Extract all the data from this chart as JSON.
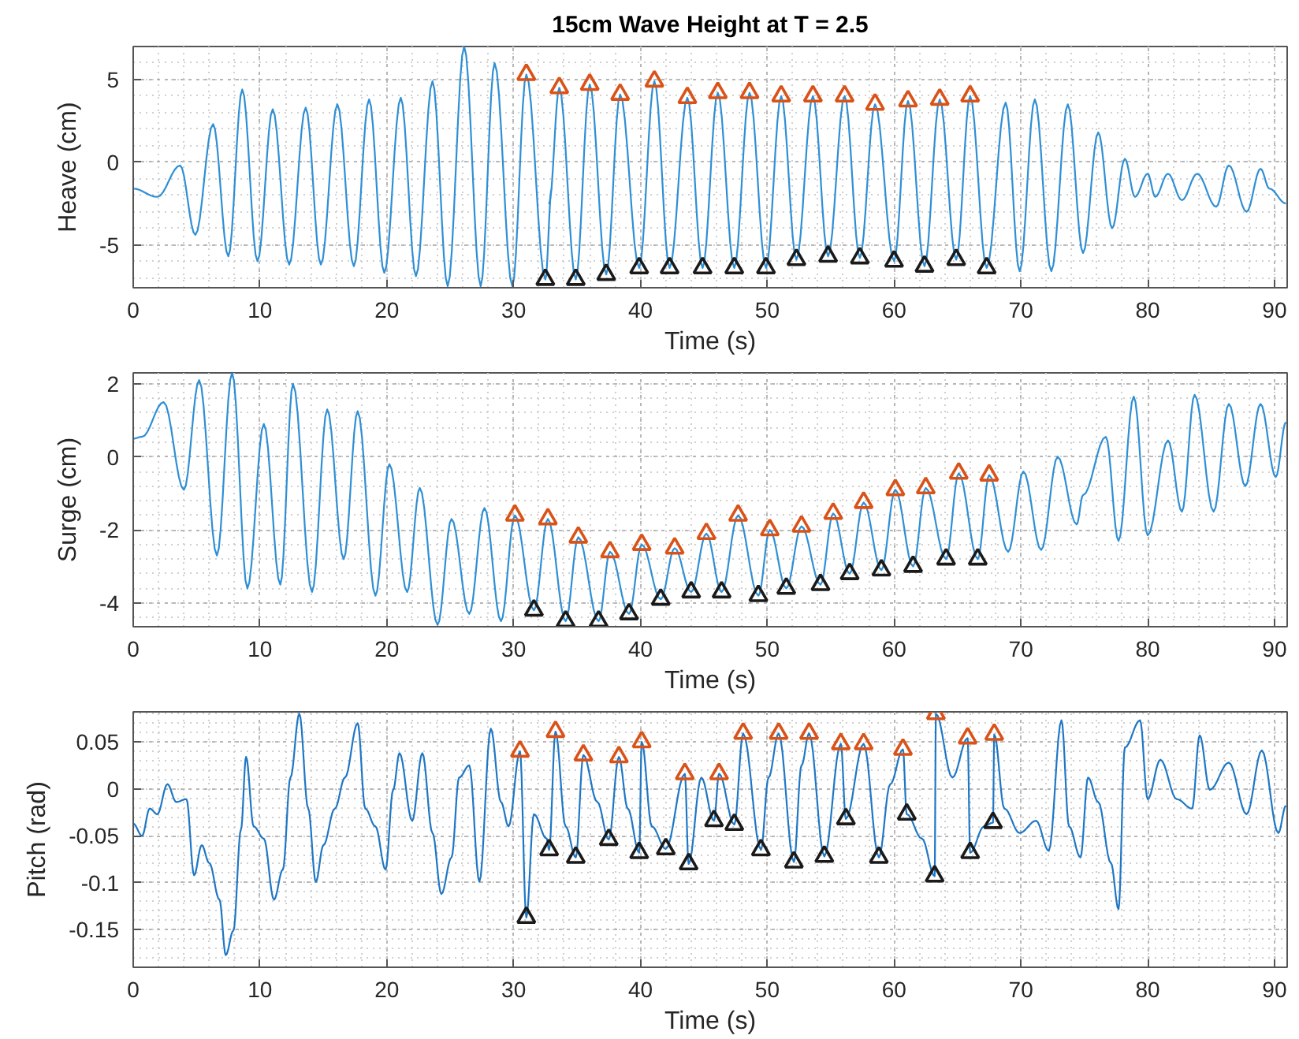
{
  "chart_data": [
    {
      "type": "line",
      "title": "15cm Wave Height at T = 2.5",
      "xlabel": "Time (s)",
      "ylabel": "Heave (cm)",
      "xlim": [
        0,
        91
      ],
      "xticks": [
        0,
        10,
        20,
        30,
        40,
        50,
        60,
        70,
        80,
        90
      ],
      "ylim": [
        -7.6,
        7
      ],
      "yticks": [
        -5,
        0,
        5
      ],
      "grid": true,
      "series": [
        {
          "color": "#2f8fd4",
          "x": [
            0,
            1.9,
            3.7,
            4.9,
            6.3,
            7.5,
            8.6,
            9.8,
            11.0,
            12.3,
            13.6,
            14.8,
            16.1,
            17.4,
            18.6,
            19.8,
            21.1,
            22.3,
            23.6,
            24.8,
            26.1,
            27.4,
            28.5,
            29.9,
            31.0,
            32.5,
            33.0,
            32.8,
            33.6,
            34.9,
            36.0,
            37.3,
            38.4,
            39.9,
            41.1,
            42.3,
            43.7,
            44.9,
            46.1,
            47.4,
            48.6,
            49.9,
            51.1,
            52.3,
            53.6,
            54.8,
            56.1,
            57.3,
            58.5,
            60.0,
            61.1,
            62.4,
            63.6,
            64.9,
            66.0,
            67.3,
            68.8,
            69.9,
            71.1,
            72.4,
            73.7,
            74.9,
            76.1,
            77.2,
            78.2,
            79.0,
            80.0,
            80.6,
            81.6,
            82.7,
            83.9,
            85.4,
            86.4,
            87.8,
            88.9,
            89.6,
            90.9
          ],
          "values": [
            -1.6,
            -2.1,
            -0.2,
            -4.4,
            2.3,
            -5.7,
            4.4,
            -6.0,
            3.2,
            -6.2,
            3.3,
            -6.2,
            3.5,
            -6.3,
            3.8,
            -6.7,
            3.9,
            -6.9,
            4.9,
            -7.5,
            7.0,
            -7.5,
            6.0,
            -7.5,
            5.3,
            -7.1,
            -1.6,
            -2.5,
            4.5,
            -7.1,
            4.7,
            -6.8,
            4.1,
            -6.4,
            4.9,
            -6.4,
            3.9,
            -6.4,
            4.2,
            -6.4,
            4.2,
            -6.4,
            4.0,
            -5.9,
            4.0,
            -5.7,
            4.0,
            -5.8,
            3.5,
            -6.0,
            3.7,
            -6.3,
            3.8,
            -5.9,
            4.0,
            -6.4,
            3.6,
            -6.6,
            3.8,
            -6.6,
            3.5,
            -5.5,
            1.8,
            -4.0,
            0.2,
            -2.1,
            -0.7,
            -2.1,
            -0.7,
            -2.3,
            -0.7,
            -2.7,
            -0.2,
            -3.0,
            -0.4,
            -1.6,
            -2.5
          ]
        },
        {
          "type": "scatter",
          "marker": "triangle",
          "color": "#d95319",
          "x": [
            31.0,
            33.6,
            36.0,
            38.4,
            41.1,
            43.7,
            46.1,
            48.6,
            51.1,
            53.6,
            56.1,
            58.5,
            61.1,
            63.6,
            66.0
          ],
          "values": [
            5.3,
            4.5,
            4.7,
            4.1,
            4.9,
            3.9,
            4.2,
            4.2,
            4.0,
            4.0,
            4.0,
            3.5,
            3.7,
            3.8,
            4.0
          ]
        },
        {
          "type": "scatter",
          "marker": "triangle",
          "color": "#1a1a1a",
          "x": [
            32.5,
            34.9,
            37.3,
            39.9,
            42.3,
            44.9,
            47.4,
            49.9,
            52.3,
            54.8,
            57.3,
            60.0,
            62.4,
            64.9,
            67.3
          ],
          "values": [
            -7.1,
            -7.1,
            -6.8,
            -6.4,
            -6.4,
            -6.4,
            -6.4,
            -6.4,
            -5.9,
            -5.7,
            -5.8,
            -6.0,
            -6.3,
            -5.9,
            -6.4
          ]
        }
      ]
    },
    {
      "type": "line",
      "xlabel": "Time (s)",
      "ylabel": "Surge (cm)",
      "xlim": [
        0,
        91
      ],
      "xticks": [
        0,
        10,
        20,
        30,
        40,
        50,
        60,
        70,
        80,
        90
      ],
      "ylim": [
        -4.65,
        2.3
      ],
      "yticks": [
        -4,
        -2,
        0,
        2
      ],
      "grid": true,
      "series": [
        {
          "color": "#2f8fd4",
          "x": [
            0,
            0.7,
            2.4,
            4.0,
            5.2,
            6.6,
            7.8,
            9.0,
            10.3,
            11.6,
            12.6,
            14.1,
            15.3,
            16.6,
            17.7,
            19.1,
            20.2,
            21.6,
            22.6,
            24.0,
            25.1,
            26.5,
            27.7,
            29.0,
            30.1,
            31.6,
            32.7,
            34.1,
            35.1,
            36.7,
            37.6,
            39.1,
            40.1,
            41.6,
            42.7,
            44.0,
            45.2,
            46.4,
            47.7,
            49.3,
            50.2,
            51.5,
            52.7,
            54.2,
            55.2,
            56.5,
            57.6,
            59.0,
            60.1,
            61.5,
            62.5,
            64.1,
            65.1,
            66.6,
            67.5,
            69.0,
            70.2,
            71.6,
            72.9,
            74.4,
            74.9,
            76.7,
            77.7,
            78.9,
            80.0,
            81.6,
            82.7,
            83.7,
            85.2,
            86.4,
            87.7,
            88.9,
            90.1,
            90.9
          ],
          "values": [
            0.5,
            0.55,
            1.5,
            -0.9,
            2.1,
            -2.7,
            2.3,
            -3.6,
            0.9,
            -3.5,
            2.0,
            -3.7,
            1.3,
            -2.8,
            1.25,
            -3.8,
            -0.2,
            -3.7,
            -0.85,
            -4.6,
            -1.7,
            -4.3,
            -1.4,
            -4.5,
            -1.6,
            -4.2,
            -1.7,
            -4.5,
            -2.2,
            -4.5,
            -2.6,
            -4.3,
            -2.4,
            -3.9,
            -2.5,
            -3.7,
            -2.1,
            -3.7,
            -1.6,
            -3.8,
            -2.0,
            -3.6,
            -1.9,
            -3.5,
            -1.55,
            -3.2,
            -1.25,
            -3.1,
            -0.9,
            -3.0,
            -0.85,
            -2.8,
            -0.45,
            -2.8,
            -0.5,
            -2.6,
            -0.4,
            -2.55,
            0.0,
            -1.85,
            -1.05,
            0.55,
            -2.3,
            1.65,
            -2.15,
            0.45,
            -1.5,
            1.7,
            -1.5,
            1.45,
            -0.8,
            1.45,
            -0.55,
            0.95
          ]
        },
        {
          "type": "scatter",
          "marker": "triangle",
          "color": "#d95319",
          "x": [
            30.1,
            32.7,
            35.1,
            37.6,
            40.1,
            42.7,
            45.2,
            47.7,
            50.2,
            52.7,
            55.2,
            57.6,
            60.1,
            62.5,
            65.1,
            67.5
          ],
          "values": [
            -1.6,
            -1.7,
            -2.2,
            -2.6,
            -2.4,
            -2.5,
            -2.1,
            -1.6,
            -2.0,
            -1.9,
            -1.55,
            -1.25,
            -0.9,
            -0.85,
            -0.45,
            -0.5
          ]
        },
        {
          "type": "scatter",
          "marker": "triangle",
          "color": "#1a1a1a",
          "x": [
            31.6,
            34.1,
            36.7,
            39.1,
            41.6,
            44.0,
            46.4,
            49.3,
            51.5,
            54.2,
            56.5,
            59.0,
            61.5,
            64.1,
            66.6
          ],
          "values": [
            -4.2,
            -4.5,
            -4.5,
            -4.3,
            -3.9,
            -3.7,
            -3.7,
            -3.8,
            -3.6,
            -3.5,
            -3.2,
            -3.1,
            -3.0,
            -2.8,
            -2.8
          ]
        }
      ]
    },
    {
      "type": "line",
      "xlabel": "Time (s)",
      "ylabel": "Pitch (rad)",
      "xlim": [
        0,
        91
      ],
      "xticks": [
        0,
        10,
        20,
        30,
        40,
        50,
        60,
        70,
        80,
        90
      ],
      "ylim": [
        -0.19,
        0.082
      ],
      "yticks": [
        -0.15,
        -0.1,
        -0.05,
        0,
        0.05
      ],
      "grid": true,
      "series": [
        {
          "color": "#1f77c4",
          "x": [
            0,
            0.7,
            1.3,
            1.9,
            2.7,
            3.4,
            4.2,
            4.8,
            5.4,
            6.0,
            6.8,
            7.3,
            7.9,
            8.5,
            8.9,
            9.5,
            10.3,
            11.1,
            11.8,
            12.4,
            13.1,
            13.8,
            14.4,
            15.0,
            15.9,
            16.7,
            17.7,
            18.3,
            19.1,
            19.9,
            20.5,
            21.0,
            22.0,
            22.8,
            23.6,
            24.3,
            25.1,
            25.7,
            26.5,
            27.3,
            28.2,
            29.0,
            29.6,
            30.5,
            31.0,
            31.6,
            32.6,
            32.8,
            33.3,
            34.1,
            34.9,
            35.5,
            36.6,
            37.5,
            38.3,
            39.0,
            39.9,
            40.1,
            40.9,
            42.0,
            43.5,
            43.8,
            44.8,
            45.8,
            46.2,
            47.4,
            48.1,
            49.5,
            50.1,
            50.9,
            52.1,
            52.7,
            53.3,
            54.5,
            55.8,
            56.2,
            57.6,
            58.8,
            59.7,
            60.7,
            61.0,
            62.2,
            63.2,
            63.3,
            64.6,
            65.8,
            66.0,
            67.1,
            67.8,
            67.9,
            68.7,
            69.9,
            71.2,
            72.2,
            73.2,
            73.8,
            74.7,
            75.3,
            76.1,
            77.1,
            77.7,
            78.2,
            79.4,
            80.0,
            81.0,
            82.3,
            83.5,
            84.1,
            84.9,
            86.4,
            87.8,
            89.0,
            90.3,
            90.9
          ],
          "values": [
            -0.037,
            -0.05,
            -0.021,
            -0.027,
            0.005,
            -0.014,
            -0.011,
            -0.092,
            -0.06,
            -0.079,
            -0.118,
            -0.177,
            -0.151,
            -0.043,
            0.034,
            -0.04,
            -0.053,
            -0.118,
            -0.086,
            0.012,
            0.08,
            -0.021,
            -0.099,
            -0.06,
            -0.021,
            0.012,
            0.07,
            -0.021,
            -0.04,
            -0.086,
            -0.001,
            0.038,
            -0.034,
            0.038,
            -0.047,
            -0.112,
            -0.073,
            0.012,
            0.025,
            -0.099,
            0.064,
            -0.014,
            -0.04,
            0.04,
            -0.137,
            -0.027,
            -0.053,
            -0.065,
            0.061,
            -0.04,
            -0.073,
            0.036,
            -0.014,
            -0.054,
            0.034,
            -0.021,
            -0.068,
            0.05,
            -0.04,
            -0.064,
            0.016,
            -0.08,
            0.012,
            -0.034,
            0.016,
            -0.038,
            0.059,
            -0.065,
            0.012,
            0.059,
            -0.078,
            0.025,
            0.059,
            -0.072,
            0.048,
            -0.032,
            0.048,
            -0.073,
            0.005,
            0.042,
            -0.027,
            -0.053,
            -0.093,
            0.08,
            0.012,
            0.054,
            -0.068,
            -0.04,
            -0.036,
            0.058,
            -0.021,
            -0.047,
            -0.034,
            -0.066,
            0.073,
            -0.04,
            -0.073,
            0.012,
            -0.014,
            -0.079,
            -0.128,
            0.044,
            0.073,
            -0.011,
            0.031,
            -0.011,
            -0.021,
            0.057,
            -0.001,
            0.028,
            -0.027,
            0.041,
            -0.047,
            -0.018
          ]
        },
        {
          "type": "scatter",
          "marker": "triangle",
          "color": "#d95319",
          "x": [
            30.5,
            33.3,
            35.5,
            38.3,
            40.1,
            43.5,
            46.2,
            48.1,
            50.9,
            53.3,
            55.8,
            57.6,
            60.7,
            63.3,
            65.8,
            67.9
          ],
          "values": [
            0.04,
            0.061,
            0.036,
            0.034,
            0.05,
            0.016,
            0.016,
            0.059,
            0.059,
            0.059,
            0.048,
            0.048,
            0.042,
            0.08,
            0.054,
            0.058
          ]
        },
        {
          "type": "scatter",
          "marker": "triangle",
          "color": "#1a1a1a",
          "x": [
            31.0,
            32.8,
            34.9,
            37.5,
            39.9,
            42.0,
            43.8,
            45.8,
            47.4,
            49.5,
            52.1,
            54.5,
            56.2,
            58.8,
            61.0,
            63.2,
            66.0,
            67.8
          ],
          "values": [
            -0.137,
            -0.065,
            -0.073,
            -0.054,
            -0.068,
            -0.064,
            -0.08,
            -0.034,
            -0.038,
            -0.065,
            -0.078,
            -0.072,
            -0.032,
            -0.073,
            -0.027,
            -0.093,
            -0.068,
            -0.036
          ]
        }
      ]
    }
  ]
}
